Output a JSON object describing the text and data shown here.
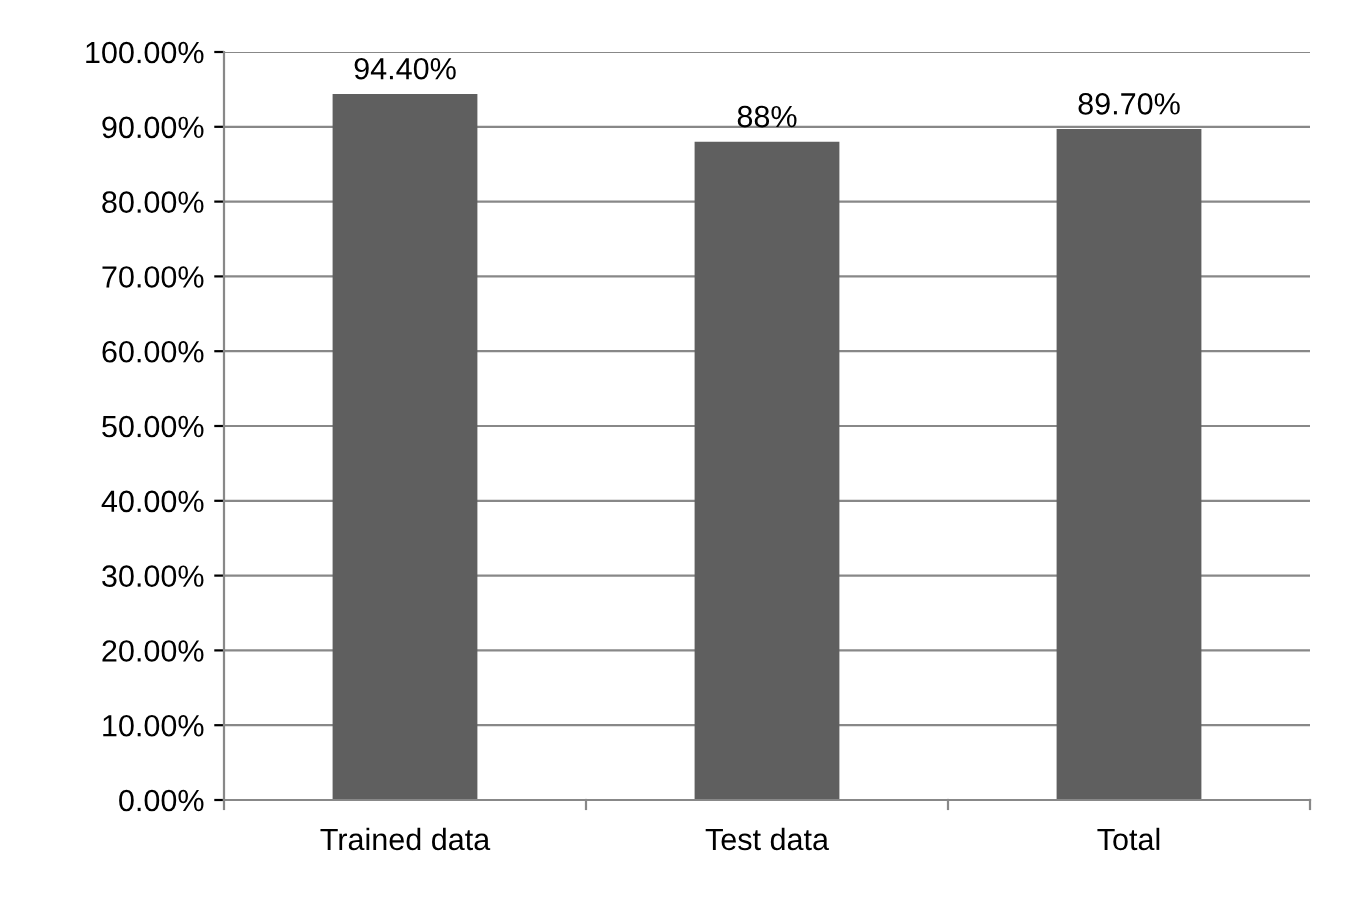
{
  "chart_data": {
    "type": "bar",
    "categories": [
      "Trained data",
      "Test data",
      "Total"
    ],
    "values": [
      94.4,
      88,
      89.7
    ],
    "color": "#5f5f5f",
    "value_labels": [
      "94.40%",
      "88%",
      "89.70%"
    ],
    "ylim": [
      0,
      100
    ],
    "yticks": [
      {
        "value": 0,
        "label": "0.00%"
      },
      {
        "value": 10,
        "label": "10.00%"
      },
      {
        "value": 20,
        "label": "20.00%"
      },
      {
        "value": 30,
        "label": "30.00%"
      },
      {
        "value": 40,
        "label": "40.00%"
      },
      {
        "value": 50,
        "label": "50.00%"
      },
      {
        "value": 60,
        "label": "60.00%"
      },
      {
        "value": 70,
        "label": "70.00%"
      },
      {
        "value": 80,
        "label": "80.00%"
      },
      {
        "value": 90,
        "label": "90.00%"
      },
      {
        "value": 100,
        "label": "100.00%"
      }
    ],
    "grid": "y",
    "legend": false
  }
}
